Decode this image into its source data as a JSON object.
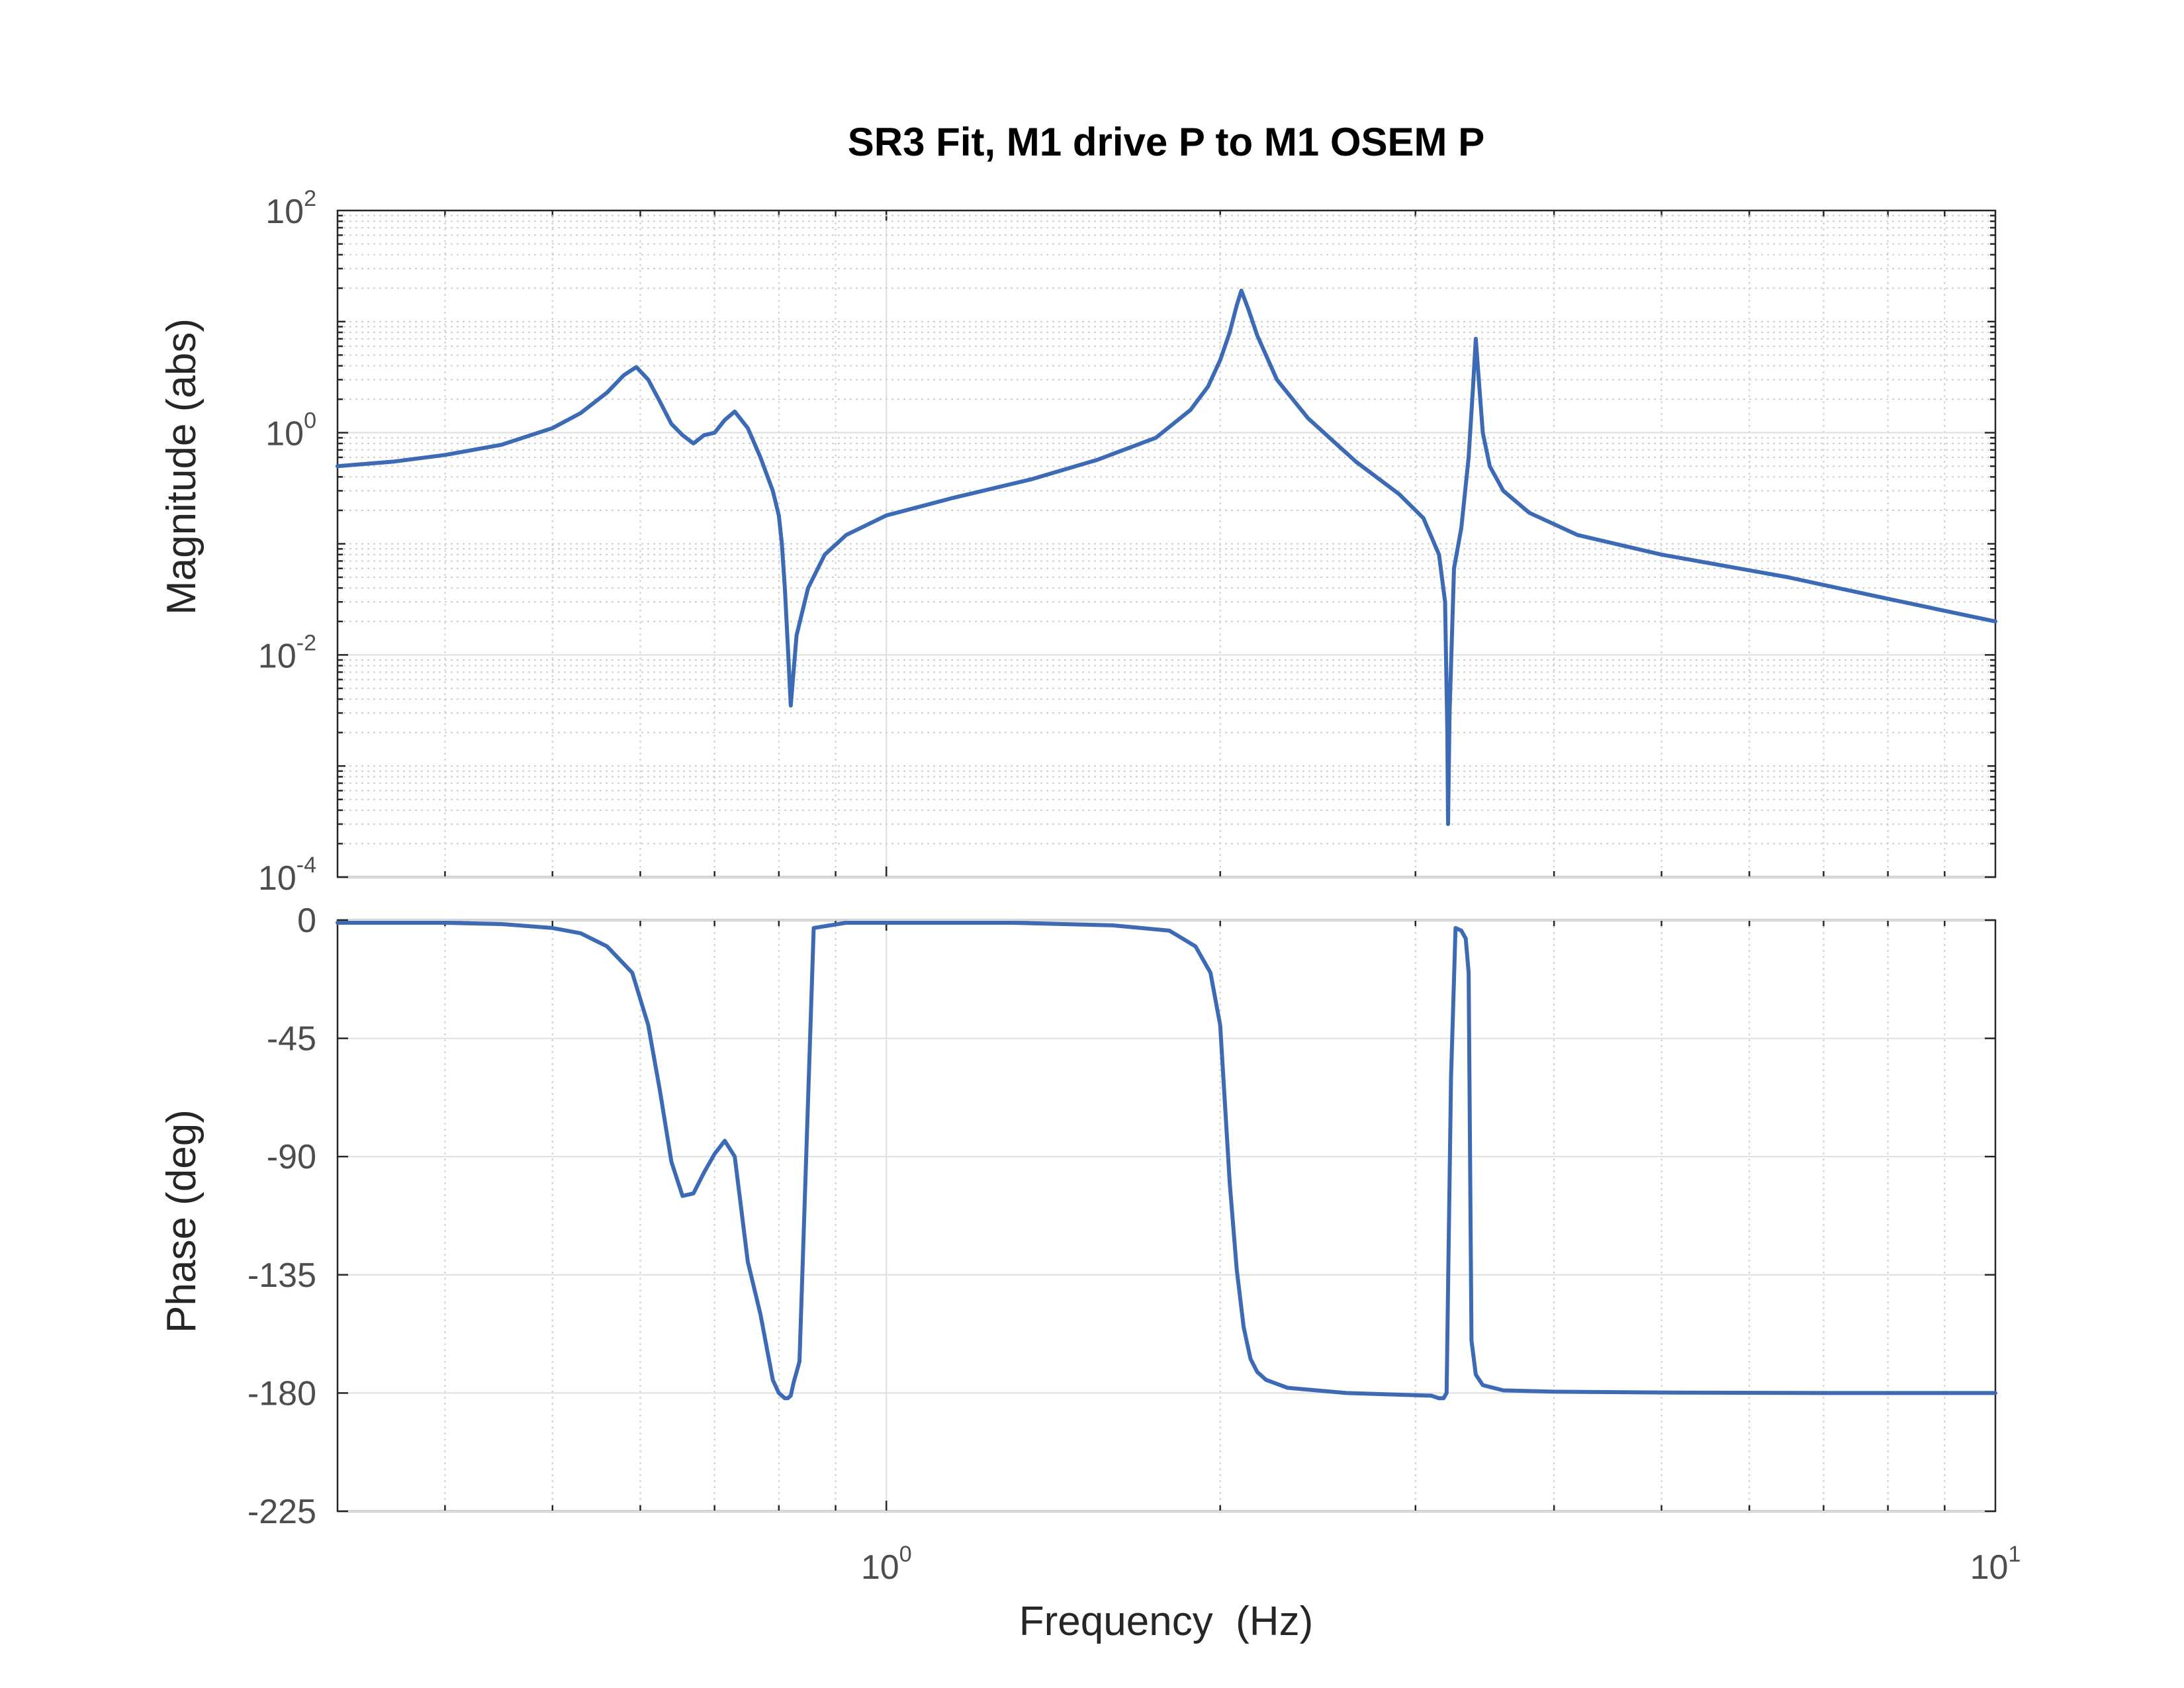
{
  "chart_data": [
    {
      "type": "line",
      "title": "SR3 Fit, M1 drive P to M1 OSEM P",
      "ylabel": "Magnitude (abs)",
      "xlabel": "",
      "xscale": "log",
      "yscale": "log",
      "xlim": [
        0.32,
        10
      ],
      "ylim": [
        0.0001,
        100
      ],
      "yticks": [
        {
          "base": "10",
          "exp": "2",
          "value": 100
        },
        {
          "base": "10",
          "exp": "0",
          "value": 1
        },
        {
          "base": "10",
          "exp": "-2",
          "value": 0.01
        },
        {
          "base": "10",
          "exp": "-4",
          "value": 0.0001
        }
      ],
      "grid": true,
      "minor_grid": true,
      "color": "#3c6ab5",
      "series": [
        {
          "x": [
            0.32,
            0.36,
            0.4,
            0.45,
            0.5,
            0.53,
            0.56,
            0.58,
            0.595,
            0.61,
            0.625,
            0.64,
            0.655,
            0.67,
            0.685,
            0.7,
            0.715,
            0.73,
            0.75,
            0.77,
            0.79,
            0.8,
            0.805,
            0.81,
            0.815,
            0.82,
            0.83,
            0.85,
            0.88,
            0.92,
            1.0,
            1.15,
            1.35,
            1.55,
            1.75,
            1.88,
            1.95,
            2.0,
            2.04,
            2.07,
            2.09,
            2.12,
            2.16,
            2.25,
            2.4,
            2.65,
            2.9,
            3.05,
            3.15,
            3.19,
            3.205,
            3.21,
            3.22,
            3.25,
            3.3,
            3.35,
            3.38,
            3.4,
            3.42,
            3.45,
            3.5,
            3.6,
            3.8,
            4.2,
            5.0,
            6.5,
            8.0,
            10.0
          ],
          "y": [
            0.5,
            0.55,
            0.63,
            0.78,
            1.1,
            1.5,
            2.3,
            3.3,
            3.9,
            3.0,
            1.9,
            1.2,
            0.95,
            0.8,
            0.95,
            1.0,
            1.3,
            1.55,
            1.1,
            0.6,
            0.3,
            0.18,
            0.1,
            0.04,
            0.012,
            0.0035,
            0.015,
            0.04,
            0.08,
            0.12,
            0.18,
            0.26,
            0.38,
            0.57,
            0.9,
            1.6,
            2.6,
            4.5,
            8.0,
            14.0,
            19.0,
            13.0,
            7.5,
            3.0,
            1.35,
            0.55,
            0.28,
            0.17,
            0.08,
            0.03,
            0.002,
            0.0003,
            0.003,
            0.06,
            0.14,
            0.6,
            2.5,
            7.0,
            3.2,
            1.0,
            0.5,
            0.3,
            0.19,
            0.12,
            0.08,
            0.05,
            0.032,
            0.02
          ]
        }
      ]
    },
    {
      "type": "line",
      "title": "",
      "ylabel": "Phase (deg)",
      "xlabel": "Frequency  (Hz)",
      "xscale": "log",
      "yscale": "linear",
      "xlim": [
        0.32,
        10
      ],
      "ylim": [
        -225,
        0
      ],
      "yticks": [
        0,
        -45,
        -90,
        -135,
        -180,
        -225
      ],
      "xticks": [
        {
          "base": "10",
          "exp": "0",
          "value": 1
        },
        {
          "base": "10",
          "exp": "1",
          "value": 10
        }
      ],
      "grid": true,
      "minor_grid": true,
      "color": "#3c6ab5",
      "series": [
        {
          "x": [
            0.32,
            0.4,
            0.45,
            0.5,
            0.53,
            0.56,
            0.59,
            0.61,
            0.625,
            0.64,
            0.655,
            0.67,
            0.685,
            0.7,
            0.715,
            0.73,
            0.75,
            0.77,
            0.79,
            0.8,
            0.81,
            0.815,
            0.82,
            0.825,
            0.835,
            0.86,
            0.92,
            1.0,
            1.3,
            1.6,
            1.8,
            1.9,
            1.96,
            2.0,
            2.04,
            2.07,
            2.1,
            2.13,
            2.16,
            2.2,
            2.3,
            2.6,
            3.1,
            3.15,
            3.18,
            3.2,
            3.21,
            3.23,
            3.26,
            3.3,
            3.33,
            3.35,
            3.37,
            3.4,
            3.45,
            3.6,
            4.0,
            5.0,
            7.0,
            10.0
          ],
          "y": [
            -1,
            -1,
            -1.5,
            -3,
            -5,
            -10,
            -20,
            -40,
            -65,
            -92,
            -105,
            -104,
            -96,
            -89,
            -84,
            -90,
            -130,
            -150,
            -175,
            -180,
            -182,
            -182,
            -181,
            -176,
            -168,
            -3,
            -1,
            -1,
            -1,
            -2,
            -4,
            -10,
            -20,
            -40,
            -100,
            -133,
            -155,
            -167,
            -172,
            -175,
            -178,
            -180,
            -181,
            -182,
            -182,
            -180,
            -140,
            -60,
            -3,
            -4,
            -7,
            -20,
            -160,
            -173,
            -177,
            -179,
            -179.5,
            -179.8,
            -180,
            -180
          ]
        }
      ]
    }
  ]
}
